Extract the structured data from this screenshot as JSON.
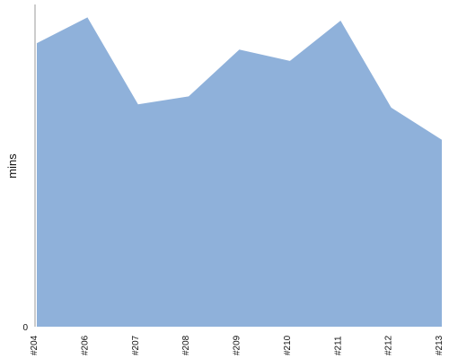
{
  "chart_data": {
    "type": "area",
    "categories": [
      "#204",
      "#206",
      "#207",
      "#208",
      "#209",
      "#210",
      "#211",
      "#212",
      "#213"
    ],
    "series": [
      {
        "values": [
          88,
          96,
          69,
          71.5,
          86,
          82.5,
          95,
          68,
          58
        ]
      }
    ],
    "title": "",
    "xlabel": "",
    "ylabel": "mins",
    "ylim": [
      0,
      100
    ],
    "yticks": [
      0
    ],
    "grid": false,
    "legend": "none",
    "colors": {
      "area_fill": "#8fb1da",
      "axis": "#9a9a9a",
      "text": "#111111"
    }
  }
}
